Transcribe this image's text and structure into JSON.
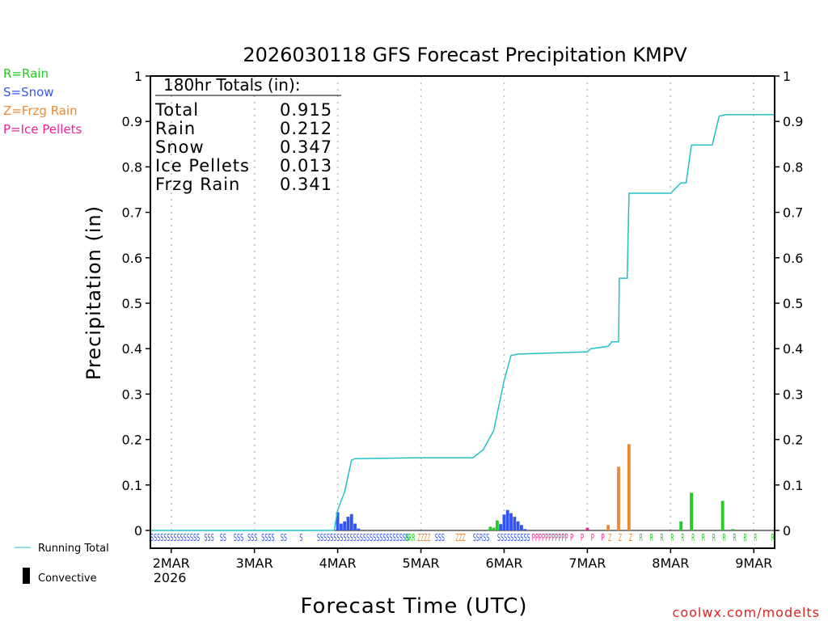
{
  "chart_data": {
    "type": "bar",
    "title": "2026030118 GFS Forecast Precipitation KMPV",
    "xlabel": "Forecast Time (UTC)",
    "ylabel": "Precipitation (in)",
    "ylim": [
      0,
      1
    ],
    "y_ticks": [
      "0",
      "0.1",
      "0.2",
      "0.3",
      "0.4",
      "0.5",
      "0.6",
      "0.7",
      "0.8",
      "0.9",
      "1"
    ],
    "x_ticks": [
      {
        "label": "2MAR",
        "hour": 6,
        "sub": "2026"
      },
      {
        "label": "3MAR",
        "hour": 30
      },
      {
        "label": "4MAR",
        "hour": 54
      },
      {
        "label": "5MAR",
        "hour": 78
      },
      {
        "label": "6MAR",
        "hour": 102
      },
      {
        "label": "7MAR",
        "hour": 126
      },
      {
        "label": "8MAR",
        "hour": 150
      },
      {
        "label": "9MAR",
        "hour": 174
      }
    ],
    "x_range_hours": [
      0,
      180
    ],
    "grid": "vertical dotted at day boundaries",
    "legend_types": [
      {
        "code": "R",
        "label": "R=Rain",
        "color": "#22cc22"
      },
      {
        "code": "S",
        "label": "S=Snow",
        "color": "#3355ee"
      },
      {
        "code": "Z",
        "label": "Z=Frzg Rain",
        "color": "#ee8833"
      },
      {
        "code": "P",
        "label": "P=Ice Pellets",
        "color": "#ee2299"
      }
    ],
    "legend_lines": {
      "running_total": "Running Total",
      "running_total_color": "#22c1c8",
      "convective": "Convective",
      "convective_color": "#000000"
    },
    "totals": {
      "heading": "180hr Totals (in):",
      "rows": [
        {
          "label": "Total",
          "value": "0.915"
        },
        {
          "label": "Rain",
          "value": "0.212"
        },
        {
          "label": "Snow",
          "value": "0.347"
        },
        {
          "label": "Ice Pellets",
          "value": "0.013"
        },
        {
          "label": "Frzg Rain",
          "value": "0.341"
        }
      ]
    },
    "bars": [
      {
        "hour": 54,
        "value": 0.04,
        "type": "S"
      },
      {
        "hour": 55,
        "value": 0.015,
        "type": "S"
      },
      {
        "hour": 56,
        "value": 0.02,
        "type": "S"
      },
      {
        "hour": 57,
        "value": 0.03,
        "type": "S"
      },
      {
        "hour": 58,
        "value": 0.036,
        "type": "S"
      },
      {
        "hour": 59,
        "value": 0.015,
        "type": "S"
      },
      {
        "hour": 60,
        "value": 0.004,
        "type": "S"
      },
      {
        "hour": 98,
        "value": 0.008,
        "type": "R"
      },
      {
        "hour": 99,
        "value": 0.006,
        "type": "R"
      },
      {
        "hour": 100,
        "value": 0.022,
        "type": "R"
      },
      {
        "hour": 101,
        "value": 0.014,
        "type": "S"
      },
      {
        "hour": 102,
        "value": 0.035,
        "type": "S"
      },
      {
        "hour": 103,
        "value": 0.045,
        "type": "S"
      },
      {
        "hour": 104,
        "value": 0.038,
        "type": "S"
      },
      {
        "hour": 105,
        "value": 0.03,
        "type": "S"
      },
      {
        "hour": 106,
        "value": 0.02,
        "type": "S"
      },
      {
        "hour": 107,
        "value": 0.012,
        "type": "S"
      },
      {
        "hour": 108,
        "value": 0.003,
        "type": "S"
      },
      {
        "hour": 126,
        "value": 0.006,
        "type": "P"
      },
      {
        "hour": 132,
        "value": 0.012,
        "type": "Z"
      },
      {
        "hour": 135,
        "value": 0.14,
        "type": "Z"
      },
      {
        "hour": 138,
        "value": 0.19,
        "type": "Z"
      },
      {
        "hour": 153,
        "value": 0.02,
        "type": "R"
      },
      {
        "hour": 156,
        "value": 0.083,
        "type": "R"
      },
      {
        "hour": 165,
        "value": 0.065,
        "type": "R"
      },
      {
        "hour": 168,
        "value": 0.003,
        "type": "R"
      }
    ],
    "running_total": [
      [
        0,
        0
      ],
      [
        53,
        0
      ],
      [
        54,
        0.045
      ],
      [
        55,
        0.065
      ],
      [
        56,
        0.085
      ],
      [
        57,
        0.12
      ],
      [
        58,
        0.155
      ],
      [
        59,
        0.158
      ],
      [
        78,
        0.16
      ],
      [
        93,
        0.16
      ],
      [
        96,
        0.178
      ],
      [
        99,
        0.22
      ],
      [
        102,
        0.33
      ],
      [
        104,
        0.385
      ],
      [
        106,
        0.388
      ],
      [
        126,
        0.393
      ],
      [
        127,
        0.4
      ],
      [
        132,
        0.405
      ],
      [
        133,
        0.415
      ],
      [
        135,
        0.415
      ],
      [
        135.2,
        0.555
      ],
      [
        137.5,
        0.555
      ],
      [
        138,
        0.742
      ],
      [
        150,
        0.742
      ],
      [
        153,
        0.765
      ],
      [
        154.5,
        0.765
      ],
      [
        156,
        0.848
      ],
      [
        162,
        0.848
      ],
      [
        164,
        0.912
      ],
      [
        166,
        0.915
      ],
      [
        180,
        0.915
      ]
    ],
    "type_strip": [
      {
        "text": "SSSSSSSSSSSSSSS",
        "type": "S",
        "start": 0
      },
      {
        "text": "SSS",
        "type": "S",
        "start": 15.5
      },
      {
        "text": "SS",
        "type": "S",
        "start": 20
      },
      {
        "text": "SSS",
        "type": "S",
        "start": 24
      },
      {
        "text": "SSS",
        "type": "S",
        "start": 28
      },
      {
        "text": "SSSS",
        "type": "S",
        "start": 32
      },
      {
        "text": "SS",
        "type": "S",
        "start": 37.5
      },
      {
        "text": "S",
        "type": "S",
        "start": 43
      },
      {
        "text": "SSSSSSSSSSSSSSSSSSSSSSSSSSSS",
        "type": "S",
        "start": 48
      },
      {
        "text": "RRR",
        "type": "R",
        "start": 73.5
      },
      {
        "text": "ZZZZ",
        "type": "Z",
        "start": 77
      },
      {
        "text": "SSS",
        "type": "S",
        "start": 82
      },
      {
        "text": "ZZZ",
        "type": "Z",
        "start": 88
      },
      {
        "text": "SSRSS",
        "type": "S",
        "start": 93
      },
      {
        "text": "SSSSSSSSSS",
        "type": "S",
        "start": 100
      },
      {
        "text": "PPPPPPPPPPP",
        "type": "P",
        "start": 110
      },
      {
        "text": "P",
        "type": "P",
        "start": 121
      },
      {
        "text": "P",
        "type": "P",
        "start": 124
      },
      {
        "text": "P",
        "type": "P",
        "start": 127
      },
      {
        "text": "P",
        "type": "P",
        "start": 130
      },
      {
        "text": "Z",
        "type": "Z",
        "start": 132
      },
      {
        "text": "Z",
        "type": "Z",
        "start": 135
      },
      {
        "text": "Z",
        "type": "Z",
        "start": 138
      },
      {
        "text": "R",
        "type": "R",
        "start": 141
      },
      {
        "text": "R",
        "type": "R",
        "start": 144
      },
      {
        "text": "R",
        "type": "R",
        "start": 147
      },
      {
        "text": "R",
        "type": "R",
        "start": 150
      },
      {
        "text": "R",
        "type": "R",
        "start": 153
      },
      {
        "text": "R",
        "type": "R",
        "start": 156
      },
      {
        "text": "R",
        "type": "R",
        "start": 159
      },
      {
        "text": "R",
        "type": "R",
        "start": 162
      },
      {
        "text": "R",
        "type": "R",
        "start": 165
      },
      {
        "text": "R",
        "type": "R",
        "start": 168
      },
      {
        "text": "R",
        "type": "R",
        "start": 171
      },
      {
        "text": "R",
        "type": "R",
        "start": 174
      },
      {
        "text": "R",
        "type": "R",
        "start": 179
      }
    ],
    "footer": "coolwx.com/modelts"
  }
}
